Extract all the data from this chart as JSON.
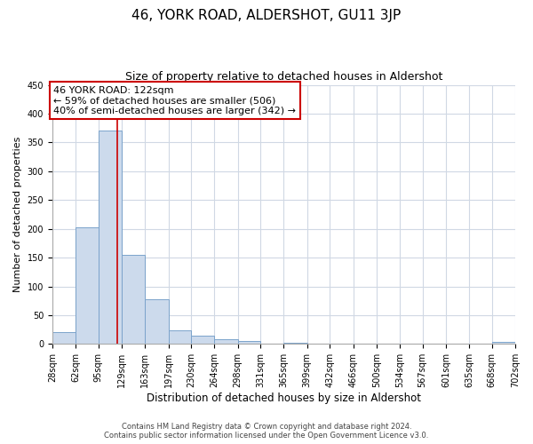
{
  "title": "46, YORK ROAD, ALDERSHOT, GU11 3JP",
  "subtitle": "Size of property relative to detached houses in Aldershot",
  "xlabel": "Distribution of detached houses by size in Aldershot",
  "ylabel": "Number of detached properties",
  "bar_color": "#ccdaec",
  "bar_edge_color": "#7ba3cb",
  "background_color": "#ffffff",
  "grid_color": "#d0d8e4",
  "bin_edges": [
    28,
    62,
    95,
    129,
    163,
    197,
    230,
    264,
    298,
    331,
    365,
    399,
    432,
    466,
    500,
    534,
    567,
    601,
    635,
    668,
    702
  ],
  "bar_heights": [
    20,
    203,
    370,
    155,
    78,
    23,
    15,
    8,
    5,
    0,
    2,
    0,
    0,
    0,
    0,
    0,
    0,
    0,
    0,
    3
  ],
  "vline_x": 122,
  "vline_color": "#cc0000",
  "annotation_line1": "46 YORK ROAD: 122sqm",
  "annotation_line2": "← 59% of detached houses are smaller (506)",
  "annotation_line3": "40% of semi-detached houses are larger (342) →",
  "annotation_box_color": "#ffffff",
  "annotation_box_edge": "#cc0000",
  "ylim": [
    0,
    450
  ],
  "yticks": [
    0,
    50,
    100,
    150,
    200,
    250,
    300,
    350,
    400,
    450
  ],
  "footer_line1": "Contains HM Land Registry data © Crown copyright and database right 2024.",
  "footer_line2": "Contains public sector information licensed under the Open Government Licence v3.0.",
  "title_fontsize": 11,
  "subtitle_fontsize": 9,
  "tick_label_fontsize": 7,
  "ylabel_fontsize": 8,
  "xlabel_fontsize": 8.5,
  "annotation_fontsize": 8,
  "footer_fontsize": 6
}
